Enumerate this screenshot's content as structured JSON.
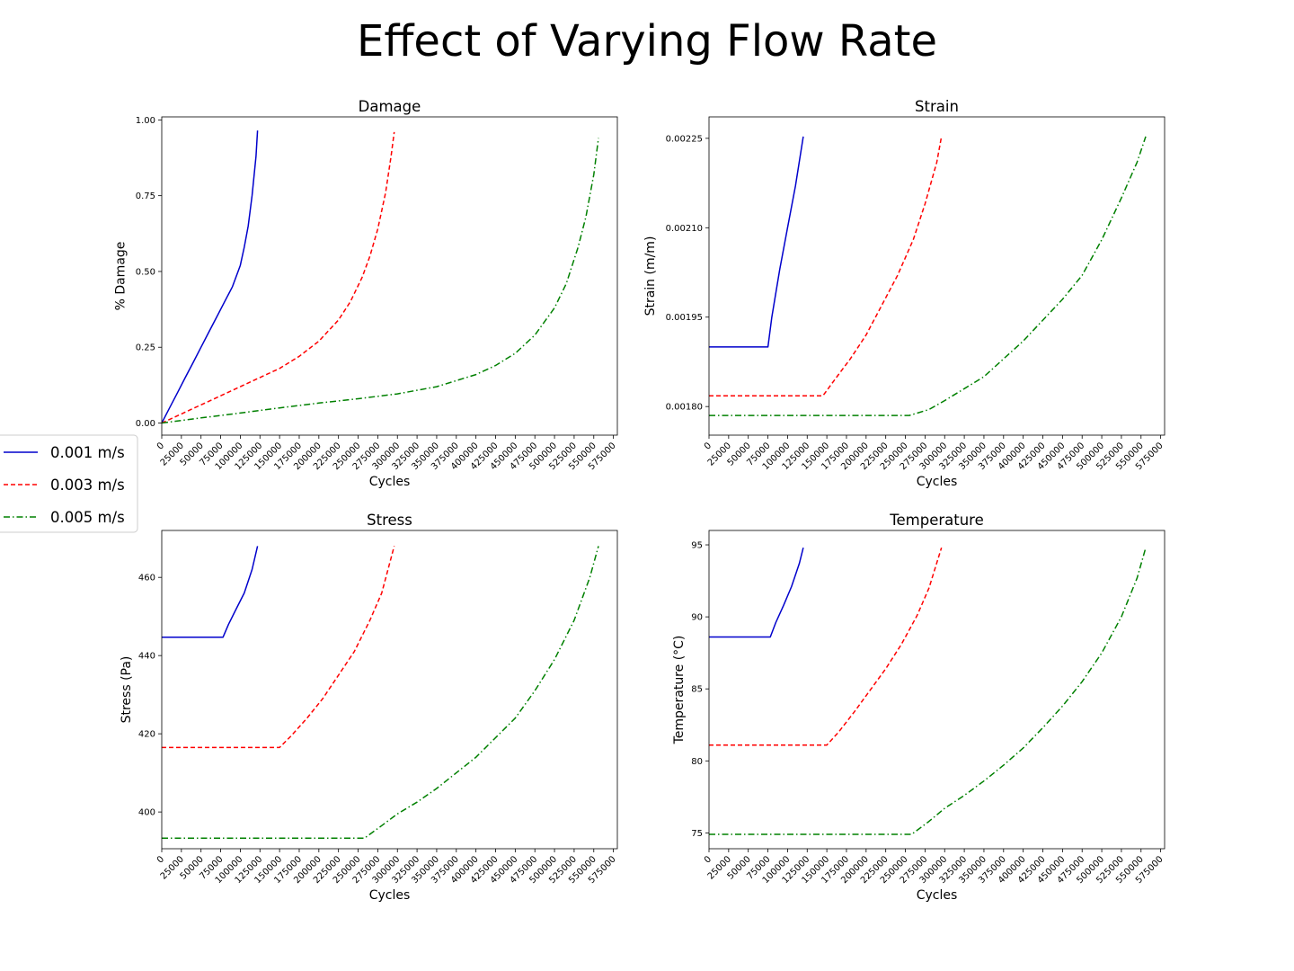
{
  "figure": {
    "title": "Effect of Varying Flow Rate",
    "legend": {
      "placement": "left-center",
      "entries": [
        {
          "label": "0.001 m/s",
          "color": "#0000cc",
          "style": "solid"
        },
        {
          "label": "0.003 m/s",
          "color": "#ff0000",
          "style": "dashed"
        },
        {
          "label": "0.005 m/s",
          "color": "#008000",
          "style": "dashdot"
        }
      ]
    }
  },
  "chart_data": [
    {
      "type": "line",
      "title": "Damage",
      "xlabel": "Cycles",
      "ylabel": "% Damage",
      "xlim": [
        0,
        580000
      ],
      "ylim": [
        -0.04,
        1.01
      ],
      "x_ticks": [
        0,
        25000,
        50000,
        75000,
        100000,
        125000,
        150000,
        175000,
        200000,
        225000,
        250000,
        275000,
        300000,
        325000,
        350000,
        375000,
        400000,
        425000,
        450000,
        475000,
        500000,
        525000,
        550000,
        575000
      ],
      "y_ticks": [
        0.0,
        0.25,
        0.5,
        0.75,
        1.0
      ],
      "y_tick_labels": [
        "0.00",
        "0.25",
        "0.50",
        "0.75",
        "1.00"
      ],
      "grid": false,
      "series": [
        {
          "name": "0.001 m/s",
          "color": "#0000cc",
          "style": "solid",
          "x": [
            0,
            10000,
            20000,
            30000,
            40000,
            50000,
            60000,
            70000,
            80000,
            90000,
            100000,
            105000,
            110000,
            115000,
            120000,
            122000
          ],
          "y": [
            0,
            0.05,
            0.1,
            0.15,
            0.2,
            0.25,
            0.3,
            0.35,
            0.4,
            0.45,
            0.52,
            0.58,
            0.65,
            0.75,
            0.88,
            0.965
          ]
        },
        {
          "name": "0.003 m/s",
          "color": "#ff0000",
          "style": "dashed",
          "x": [
            0,
            25000,
            50000,
            75000,
            100000,
            125000,
            150000,
            175000,
            200000,
            225000,
            240000,
            255000,
            265000,
            275000,
            285000,
            292000,
            296000
          ],
          "y": [
            0,
            0.03,
            0.06,
            0.09,
            0.12,
            0.15,
            0.18,
            0.22,
            0.27,
            0.34,
            0.4,
            0.48,
            0.55,
            0.64,
            0.76,
            0.88,
            0.96
          ]
        },
        {
          "name": "0.005 m/s",
          "color": "#008000",
          "style": "dashdot",
          "x": [
            0,
            50000,
            100000,
            150000,
            200000,
            250000,
            300000,
            350000,
            400000,
            425000,
            450000,
            475000,
            500000,
            515000,
            530000,
            540000,
            550000,
            556000
          ],
          "y": [
            0,
            0.017,
            0.033,
            0.05,
            0.066,
            0.08,
            0.096,
            0.12,
            0.16,
            0.19,
            0.23,
            0.29,
            0.38,
            0.46,
            0.58,
            0.68,
            0.82,
            0.94
          ]
        }
      ]
    },
    {
      "type": "line",
      "title": "Strain",
      "xlabel": "Cycles",
      "ylabel": "Strain (m/m)",
      "xlim": [
        0,
        580000
      ],
      "ylim": [
        0.001752,
        0.002286
      ],
      "x_ticks": [
        0,
        25000,
        50000,
        75000,
        100000,
        125000,
        150000,
        175000,
        200000,
        225000,
        250000,
        275000,
        300000,
        325000,
        350000,
        375000,
        400000,
        425000,
        450000,
        475000,
        500000,
        525000,
        550000,
        575000
      ],
      "y_ticks": [
        0.0018,
        0.00195,
        0.0021,
        0.00225
      ],
      "y_tick_labels": [
        "0.00180",
        "0.00195",
        "0.00210",
        "0.00225"
      ],
      "grid": false,
      "series": [
        {
          "name": "0.001 m/s",
          "color": "#0000cc",
          "style": "solid",
          "x": [
            0,
            75000,
            80000,
            90000,
            100000,
            110000,
            120000
          ],
          "y": [
            0.0019,
            0.0019,
            0.00195,
            0.00203,
            0.0021,
            0.00217,
            0.002253
          ]
        },
        {
          "name": "0.003 m/s",
          "color": "#ff0000",
          "style": "dashed",
          "x": [
            0,
            145000,
            160000,
            180000,
            200000,
            220000,
            240000,
            260000,
            275000,
            290000,
            296000
          ],
          "y": [
            0.001818,
            0.001818,
            0.001845,
            0.00188,
            0.00192,
            0.00197,
            0.00202,
            0.00208,
            0.00214,
            0.00221,
            0.002253
          ]
        },
        {
          "name": "0.005 m/s",
          "color": "#008000",
          "style": "dashdot",
          "x": [
            0,
            255000,
            280000,
            300000,
            325000,
            350000,
            375000,
            400000,
            425000,
            450000,
            475000,
            500000,
            525000,
            545000,
            556000
          ],
          "y": [
            0.001785,
            0.001785,
            0.001795,
            0.00181,
            0.00183,
            0.00185,
            0.00188,
            0.00191,
            0.001945,
            0.00198,
            0.00202,
            0.00208,
            0.00215,
            0.00221,
            0.002253
          ]
        }
      ]
    },
    {
      "type": "line",
      "title": "Stress",
      "xlabel": "Cycles",
      "ylabel": "Stress (Pa)",
      "xlim": [
        0,
        580000
      ],
      "ylim": [
        390.6,
        472.0
      ],
      "x_ticks": [
        0,
        25000,
        50000,
        75000,
        100000,
        125000,
        150000,
        175000,
        200000,
        225000,
        250000,
        275000,
        300000,
        325000,
        350000,
        375000,
        400000,
        425000,
        450000,
        475000,
        500000,
        525000,
        550000,
        575000
      ],
      "y_ticks": [
        400,
        420,
        440,
        460
      ],
      "y_tick_labels": [
        "400",
        "420",
        "440",
        "460"
      ],
      "grid": false,
      "series": [
        {
          "name": "0.001 m/s",
          "color": "#0000cc",
          "style": "solid",
          "x": [
            0,
            78000,
            85000,
            95000,
            105000,
            115000,
            122000
          ],
          "y": [
            444.7,
            444.7,
            448,
            452,
            456,
            462,
            468
          ]
        },
        {
          "name": "0.003 m/s",
          "color": "#ff0000",
          "style": "dashed",
          "x": [
            0,
            150000,
            165000,
            185000,
            205000,
            225000,
            245000,
            265000,
            280000,
            296000
          ],
          "y": [
            416.5,
            416.5,
            419.5,
            424,
            429,
            435,
            441,
            449,
            456,
            468
          ]
        },
        {
          "name": "0.005 m/s",
          "color": "#008000",
          "style": "dashdot",
          "x": [
            0,
            258000,
            280000,
            300000,
            325000,
            350000,
            375000,
            400000,
            425000,
            450000,
            475000,
            500000,
            525000,
            545000,
            556000
          ],
          "y": [
            393.3,
            393.3,
            396.5,
            399.5,
            402.5,
            406,
            410,
            414,
            419,
            424,
            431,
            439,
            449,
            460,
            468
          ]
        }
      ]
    },
    {
      "type": "line",
      "title": "Temperature",
      "xlabel": "Cycles",
      "ylabel": "Temperature (°C)",
      "xlim": [
        0,
        580000
      ],
      "ylim": [
        73.9,
        96.0
      ],
      "x_ticks": [
        0,
        25000,
        50000,
        75000,
        100000,
        125000,
        150000,
        175000,
        200000,
        225000,
        250000,
        275000,
        300000,
        325000,
        350000,
        375000,
        400000,
        425000,
        450000,
        475000,
        500000,
        525000,
        550000,
        575000
      ],
      "y_ticks": [
        75,
        80,
        85,
        90,
        95
      ],
      "y_tick_labels": [
        "75",
        "80",
        "85",
        "90",
        "95"
      ],
      "grid": false,
      "series": [
        {
          "name": "0.001 m/s",
          "color": "#0000cc",
          "style": "solid",
          "x": [
            0,
            78000,
            85000,
            95000,
            105000,
            115000,
            120000
          ],
          "y": [
            88.6,
            88.6,
            89.6,
            90.8,
            92.1,
            93.7,
            94.8
          ]
        },
        {
          "name": "0.003 m/s",
          "color": "#ff0000",
          "style": "dashed",
          "x": [
            0,
            150000,
            165000,
            185000,
            205000,
            225000,
            245000,
            265000,
            280000,
            296000
          ],
          "y": [
            81.1,
            81.1,
            82,
            83.4,
            84.9,
            86.4,
            88.1,
            90.1,
            92,
            94.8
          ]
        },
        {
          "name": "0.005 m/s",
          "color": "#008000",
          "style": "dashdot",
          "x": [
            0,
            258000,
            280000,
            300000,
            325000,
            350000,
            375000,
            400000,
            425000,
            450000,
            475000,
            500000,
            525000,
            545000,
            556000
          ],
          "y": [
            74.9,
            74.9,
            75.8,
            76.7,
            77.6,
            78.6,
            79.7,
            80.9,
            82.3,
            83.8,
            85.5,
            87.5,
            90,
            92.7,
            94.8
          ]
        }
      ]
    }
  ]
}
